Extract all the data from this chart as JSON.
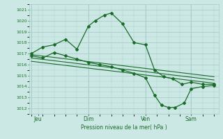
{
  "bg_color": "#cce8e4",
  "grid_color": "#aaccca",
  "line_color": "#1a6b2a",
  "xlabel": "Pression niveau de la mer( hPa )",
  "ylim": [
    1011.5,
    1021.5
  ],
  "yticks": [
    1012,
    1013,
    1014,
    1015,
    1016,
    1017,
    1018,
    1019,
    1020,
    1021
  ],
  "xtick_labels": [
    "Jeu",
    "Dim",
    "Ven",
    "Sam"
  ],
  "xtick_positions": [
    0.3,
    2.5,
    5.0,
    7.0
  ],
  "vline_positions": [
    0.0,
    2.5,
    5.0,
    7.0
  ],
  "xlim": [
    -0.1,
    8.2
  ],
  "series1_x": [
    0.0,
    0.5,
    1.0,
    1.5,
    2.0,
    2.5,
    2.8,
    3.2,
    3.5,
    4.0,
    4.5,
    5.0,
    5.4,
    5.8,
    6.2,
    6.6,
    7.0,
    7.5,
    8.0
  ],
  "series1_y": [
    1017.0,
    1017.6,
    1017.8,
    1018.3,
    1017.4,
    1019.5,
    1020.0,
    1020.5,
    1020.7,
    1019.7,
    1018.0,
    1017.8,
    1015.5,
    1014.9,
    1014.7,
    1014.2,
    1014.4,
    1014.2,
    1014.2
  ],
  "series2_x": [
    0.0,
    0.5,
    1.0,
    1.5,
    2.0,
    2.5,
    3.0,
    3.5,
    4.0,
    4.5,
    5.0,
    5.4,
    5.7,
    6.0,
    6.3,
    6.7,
    7.0,
    7.5,
    8.0
  ],
  "series2_y": [
    1016.8,
    1016.6,
    1017.1,
    1016.8,
    1016.5,
    1016.2,
    1016.0,
    1015.8,
    1015.5,
    1015.2,
    1014.8,
    1013.2,
    1012.3,
    1012.1,
    1012.1,
    1012.5,
    1013.8,
    1014.0,
    1014.1
  ],
  "series3_x": [
    0.0,
    8.0
  ],
  "series3_y": [
    1016.9,
    1014.9
  ],
  "series4_x": [
    0.0,
    8.0
  ],
  "series4_y": [
    1016.6,
    1014.6
  ],
  "series5_x": [
    0.0,
    8.0
  ],
  "series5_y": [
    1016.3,
    1014.3
  ]
}
